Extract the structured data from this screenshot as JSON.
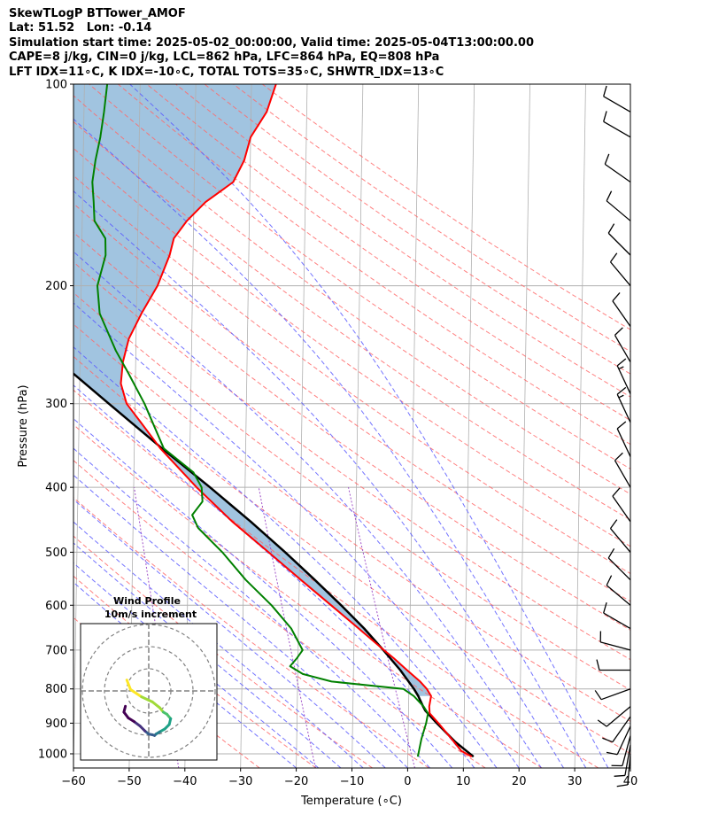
{
  "title_lines": [
    "SkewTLogP BTTower_AMOF",
    "Lat: 51.52   Lon: -0.14",
    "Simulation start time: 2025-05-02_00:00:00, Valid time: 2025-05-04T13:00:00.00",
    "CAPE=8 j/kg, CIN=0 j/kg, LCL=862 hPa, LFC=864 hPa, EQ=808 hPa",
    "LFT IDX=11∘C, K IDX=-10∘C, TOTAL TOTS=35∘C, SHWTR_IDX=13∘C"
  ],
  "chart_data": {
    "type": "skewt",
    "xlabel": "Temperature (∘C)",
    "ylabel": "Pressure (hPa)",
    "xlim": [
      -60,
      40
    ],
    "ylim": [
      1050,
      100
    ],
    "y_scale": "log",
    "xticks": [
      "−60",
      "−50",
      "−40",
      "−30",
      "−20",
      "−10",
      "0",
      "10",
      "20",
      "30",
      "40"
    ],
    "yticks": [
      "100",
      "200",
      "300",
      "400",
      "500",
      "600",
      "700",
      "800",
      "900",
      "1000"
    ],
    "colors": {
      "temperature": "#ff0000",
      "dewpoint": "#008000",
      "parcel": "#000000",
      "cape_fill": "#a1c4e0",
      "isotherm": "#b0b0b0",
      "dry_adiabat": "#ff6a6a",
      "moist_adiabat": "#5a5aff",
      "mixing_ratio": "#a050c8"
    },
    "temperature": {
      "pressure": [
        1010,
        990,
        950,
        900,
        870,
        850,
        820,
        800,
        780,
        750,
        720,
        700,
        650,
        600,
        550,
        500,
        450,
        400,
        350,
        320,
        300,
        280,
        260,
        240,
        220,
        200,
        180,
        170,
        160,
        150,
        140,
        130,
        120,
        110,
        100
      ],
      "temp": [
        11.5,
        9.6,
        7.8,
        5.4,
        3.8,
        3.7,
        4.0,
        3.2,
        2.0,
        -0.4,
        -2.8,
        -4.6,
        -9.2,
        -14.2,
        -19.7,
        -25.6,
        -32.2,
        -38.7,
        -45.3,
        -48.9,
        -51.5,
        -52.6,
        -52.3,
        -51.3,
        -49.1,
        -46.3,
        -44.2,
        -43.5,
        -41.2,
        -37.9,
        -33.0,
        -31.1,
        -30.0,
        -27.2,
        -25.6
      ]
    },
    "dewpoint": {
      "pressure": [
        1010,
        950,
        900,
        870,
        850,
        820,
        800,
        780,
        760,
        740,
        720,
        700,
        650,
        600,
        550,
        500,
        460,
        440,
        420,
        400,
        380,
        350,
        300,
        270,
        250,
        220,
        200,
        180,
        170,
        160,
        150,
        140,
        130,
        120,
        110,
        100
      ],
      "temp": [
        1.8,
        2.4,
        3.2,
        3.5,
        2.7,
        0.9,
        -1.0,
        -13.9,
        -19.1,
        -21.4,
        -20.2,
        -19.2,
        -21.3,
        -24.9,
        -29.6,
        -33.9,
        -38.3,
        -39.4,
        -37.6,
        -37.8,
        -39.3,
        -44.7,
        -48.3,
        -51.3,
        -53.6,
        -56.6,
        -57.1,
        -55.7,
        -55.8,
        -57.8,
        -58.0,
        -58.3,
        -57.8,
        -57.0,
        -56.4,
        -55.9
      ]
    },
    "parcel": {
      "pressure": [
        1010,
        960,
        900,
        862,
        850,
        820,
        800,
        750,
        700,
        650,
        600,
        550,
        500,
        450,
        400,
        350,
        300,
        250,
        200,
        150,
        100
      ],
      "temp": [
        11.8,
        8.5,
        5.1,
        3.0,
        2.6,
        1.7,
        0.9,
        -1.6,
        -4.7,
        -8.2,
        -12.4,
        -17.2,
        -22.6,
        -28.9,
        -36.3,
        -45.0,
        -54.7,
        -66.1,
        -79.3,
        -95.6,
        -117.4
      ]
    },
    "wind_barbs": [
      {
        "p": 1000,
        "speed": 10,
        "dir": 185
      },
      {
        "p": 970,
        "speed": 12,
        "dir": 190
      },
      {
        "p": 940,
        "speed": 14,
        "dir": 195
      },
      {
        "p": 910,
        "speed": 14,
        "dir": 205
      },
      {
        "p": 880,
        "speed": 13,
        "dir": 215
      },
      {
        "p": 850,
        "speed": 12,
        "dir": 230
      },
      {
        "p": 800,
        "speed": 10,
        "dir": 250
      },
      {
        "p": 750,
        "speed": 10,
        "dir": 270
      },
      {
        "p": 700,
        "speed": 11,
        "dir": 285
      },
      {
        "p": 650,
        "speed": 12,
        "dir": 300
      },
      {
        "p": 600,
        "speed": 13,
        "dir": 310
      },
      {
        "p": 550,
        "speed": 12,
        "dir": 315
      },
      {
        "p": 500,
        "speed": 12,
        "dir": 320
      },
      {
        "p": 450,
        "speed": 13,
        "dir": 325
      },
      {
        "p": 400,
        "speed": 14,
        "dir": 330
      },
      {
        "p": 360,
        "speed": 14,
        "dir": 335
      },
      {
        "p": 320,
        "speed": 15,
        "dir": 335
      },
      {
        "p": 290,
        "speed": 15,
        "dir": 335
      },
      {
        "p": 260,
        "speed": 14,
        "dir": 330
      },
      {
        "p": 230,
        "speed": 14,
        "dir": 325
      },
      {
        "p": 200,
        "speed": 13,
        "dir": 320
      },
      {
        "p": 180,
        "speed": 12,
        "dir": 315
      },
      {
        "p": 160,
        "speed": 12,
        "dir": 310
      },
      {
        "p": 140,
        "speed": 11,
        "dir": 305
      },
      {
        "p": 120,
        "speed": 11,
        "dir": 300
      },
      {
        "p": 110,
        "speed": 10,
        "dir": 300
      }
    ],
    "hodograph": {
      "title": "Wind Profile",
      "subtitle": "10m/s increment",
      "u": [
        -3.0,
        -2.5,
        -1.0,
        0.5,
        1.5,
        2.0,
        2.5,
        3.0,
        2.8,
        2.2,
        1.5,
        1.0,
        0.8,
        0.5,
        0.0,
        -0.5,
        -1.2,
        -2.0,
        -2.8,
        -3.4,
        -3.2
      ],
      "v": [
        1.5,
        0.2,
        -0.8,
        -1.5,
        -2.3,
        -2.9,
        -3.2,
        -3.8,
        -4.6,
        -5.2,
        -5.6,
        -5.9,
        -6.1,
        -6.0,
        -5.9,
        -5.5,
        -4.8,
        -4.2,
        -3.7,
        -2.9,
        -2.1
      ]
    }
  }
}
